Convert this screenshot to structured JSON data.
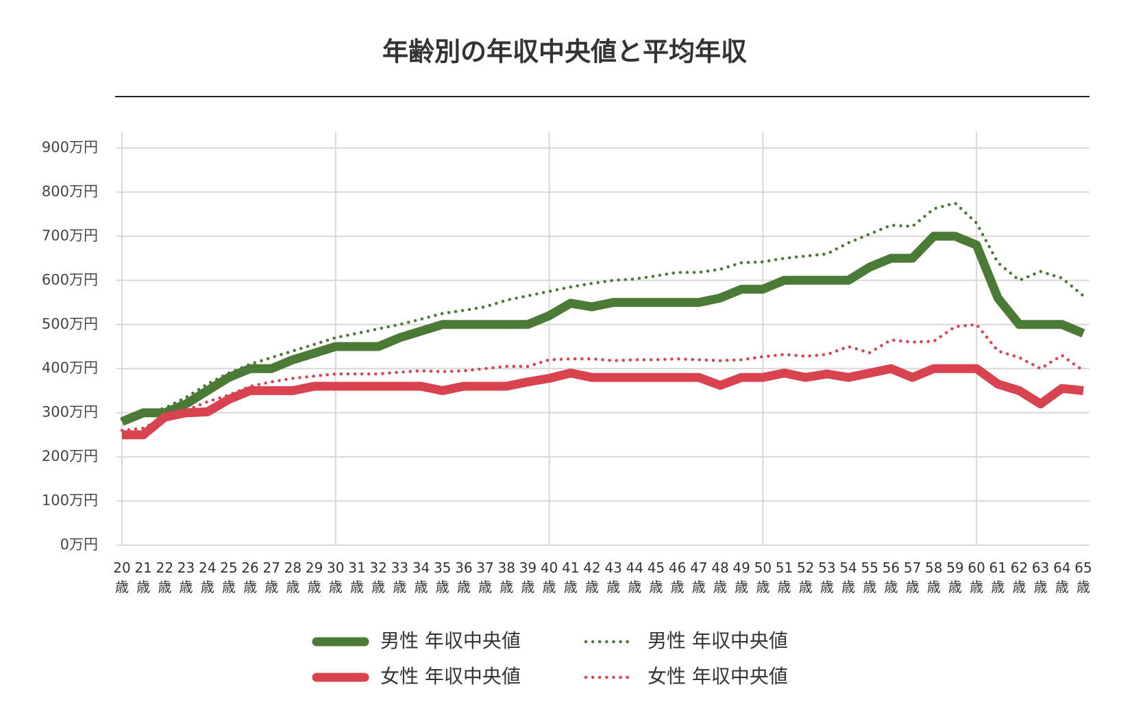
{
  "chart_data": {
    "type": "line",
    "title": "年齢別の年収中央値と平均年収",
    "categories": [
      "20歳",
      "21歳",
      "22歳",
      "23歳",
      "24歳",
      "25歳",
      "26歳",
      "27歳",
      "28歳",
      "29歳",
      "30歳",
      "31歳",
      "32歳",
      "33歳",
      "34歳",
      "35歳",
      "36歳",
      "37歳",
      "38歳",
      "39歳",
      "40歳",
      "41歳",
      "42歳",
      "43歳",
      "44歳",
      "45歳",
      "46歳",
      "47歳",
      "48歳",
      "49歳",
      "50歳",
      "51歳",
      "52歳",
      "53歳",
      "54歳",
      "55歳",
      "56歳",
      "57歳",
      "58歳",
      "59歳",
      "60歳",
      "61歳",
      "62歳",
      "63歳",
      "64歳",
      "65歳"
    ],
    "series": [
      {
        "name": "男性 年収中央値",
        "color": "#4a7a35",
        "line_style": "solid",
        "values": [
          280,
          300,
          300,
          320,
          350,
          380,
          400,
          400,
          420,
          435,
          450,
          450,
          450,
          470,
          485,
          500,
          500,
          500,
          500,
          500,
          520,
          548,
          540,
          550,
          550,
          550,
          550,
          550,
          560,
          580,
          580,
          600,
          600,
          600,
          600,
          630,
          650,
          650,
          700,
          700,
          680,
          560,
          500,
          500,
          500,
          480
        ]
      },
      {
        "name": "女性 年収中央値",
        "color": "#d9434f",
        "line_style": "solid",
        "values": [
          250,
          250,
          290,
          300,
          302,
          330,
          350,
          350,
          350,
          360,
          360,
          360,
          360,
          360,
          360,
          350,
          360,
          360,
          360,
          370,
          378,
          390,
          380,
          380,
          380,
          380,
          380,
          380,
          362,
          380,
          380,
          390,
          380,
          388,
          380,
          390,
          400,
          380,
          400,
          400,
          400,
          365,
          350,
          320,
          355,
          350
        ]
      },
      {
        "name": "男性 年収中央値",
        "color": "#4a7a35",
        "line_style": "dotted",
        "values": [
          285,
          300,
          310,
          335,
          365,
          390,
          410,
          425,
          440,
          455,
          470,
          480,
          490,
          500,
          512,
          525,
          532,
          540,
          555,
          565,
          575,
          585,
          593,
          600,
          603,
          610,
          618,
          618,
          625,
          640,
          642,
          650,
          655,
          660,
          685,
          705,
          725,
          722,
          762,
          775,
          730,
          640,
          600,
          620,
          605,
          565
        ]
      },
      {
        "name": "女性 年収中央値",
        "color": "#d9434f",
        "line_style": "dotted",
        "values": [
          260,
          265,
          290,
          305,
          325,
          340,
          360,
          370,
          378,
          383,
          388,
          388,
          388,
          392,
          395,
          393,
          395,
          400,
          405,
          405,
          420,
          422,
          422,
          418,
          420,
          420,
          422,
          420,
          418,
          420,
          427,
          432,
          428,
          432,
          450,
          436,
          465,
          460,
          462,
          495,
          500,
          440,
          425,
          400,
          430,
          395
        ]
      }
    ],
    "ylim": [
      0,
      900
    ],
    "yticks": [
      {
        "value": 0,
        "label": "0万円"
      },
      {
        "value": 100,
        "label": "100万円"
      },
      {
        "value": 200,
        "label": "200万円"
      },
      {
        "value": 300,
        "label": "300万円"
      },
      {
        "value": 400,
        "label": "400万円"
      },
      {
        "value": 500,
        "label": "500万円"
      },
      {
        "value": 600,
        "label": "600万円"
      },
      {
        "value": 700,
        "label": "700万円"
      },
      {
        "value": 800,
        "label": "800万円"
      },
      {
        "value": 900,
        "label": "900万円"
      }
    ],
    "grid": true
  }
}
